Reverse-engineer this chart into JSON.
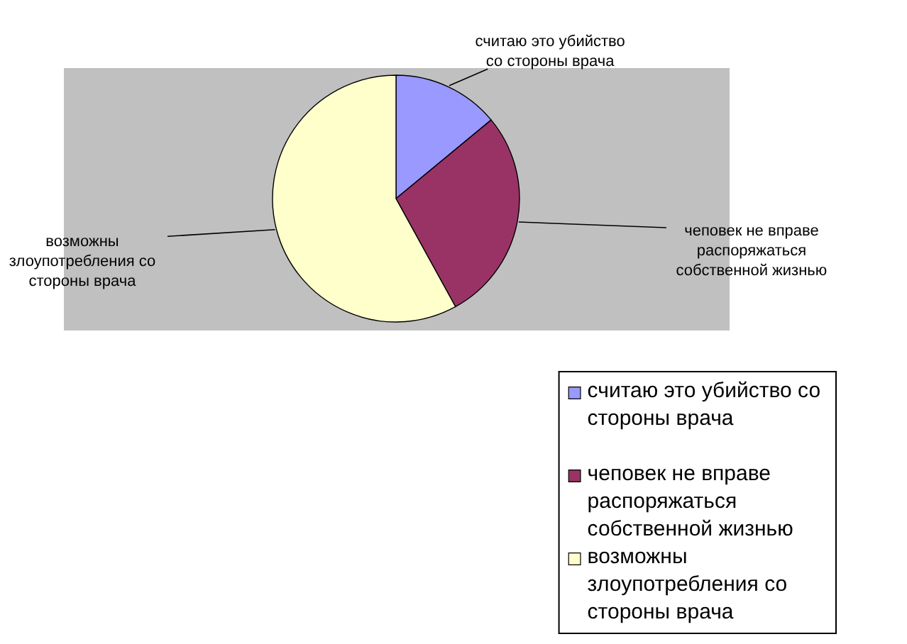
{
  "chart_data": {
    "type": "pie",
    "categories": [
      "считаю это убийство со стороны врача",
      "чеповек не вправе распоряжаться собственной жизнью",
      "возможны злоупотребления со стороны врача"
    ],
    "values": [
      14,
      28,
      58
    ],
    "colors": [
      "#9999ff",
      "#993366",
      "#ffffcc"
    ],
    "legend": "bottom right"
  }
}
